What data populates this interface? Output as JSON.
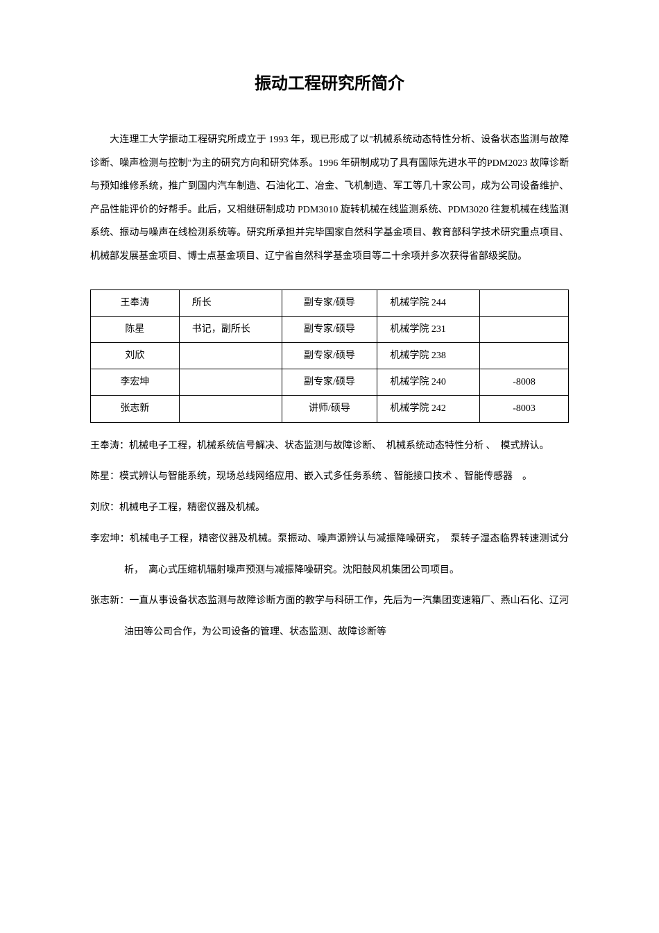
{
  "title": "振动工程研究所简介",
  "intro": "大连理工大学振动工程研究所成立于 1993 年，现已形成了以\"机械系统动态特性分析、设备状态监测与故障诊断、噪声检测与控制\"为主的研究方向和研究体系。1996 年研制成功了具有国际先进水平的PDM2023 故障诊断与预知维修系统，推广到国内汽车制造、石油化工、冶金、飞机制造、军工等几十家公司，成为公司设备维护、产品性能评价的好帮手。此后，又相继研制成功 PDM3010 旋转机械在线监测系统、PDM3020 往复机械在线监测系统、振动与噪声在线检测系统等。研究所承担并完毕国家自然科学基金项目、教育部科学技术研究重点项目、机械部发展基金项目、博士点基金项目、辽宁省自然科学基金项目等二十余项并多次获得省部级奖励。",
  "table": {
    "rows": [
      {
        "name": "王奉涛",
        "position": "所长",
        "title": "副专家/硕导",
        "location": "机械学院 244",
        "ext": ""
      },
      {
        "name": "陈星",
        "position": "书记，副所长",
        "title": "副专家/硕导",
        "location": "机械学院 231",
        "ext": ""
      },
      {
        "name": "刘欣",
        "position": "",
        "title": "副专家/硕导",
        "location": "机械学院 238",
        "ext": ""
      },
      {
        "name": "李宏坤",
        "position": "",
        "title": "副专家/硕导",
        "location": "机械学院 240",
        "ext": "-8008"
      },
      {
        "name": "张志新",
        "position": "",
        "title": "讲师/硕导",
        "location": "机械学院 242",
        "ext": "-8003"
      }
    ]
  },
  "bios": [
    "王奉涛：机械电子工程，机械系统信号解决、状态监测与故障诊断、　机械系统动态特性分析 、　模式辨认。",
    "陈星：模式辨认与智能系统，现场总线网络应用、嵌入式多任务系统 、智能接口技术 、智能传感器　。",
    "刘欣：机械电子工程，精密仪器及机械。",
    "李宏坤：机械电子工程，精密仪器及机械。泵振动、噪声源辨认与减振降噪研究，　泵转子湿态临界转速测试分析，　离心式压缩机辐射噪声预测与减振降噪研究。沈阳鼓风机集团公司项目。",
    "张志新：一直从事设备状态监测与故障诊断方面的教学与科研工作，先后为一汽集团变速箱厂、燕山石化、辽河油田等公司合作，为公司设备的管理、状态监测、故障诊断等"
  ]
}
